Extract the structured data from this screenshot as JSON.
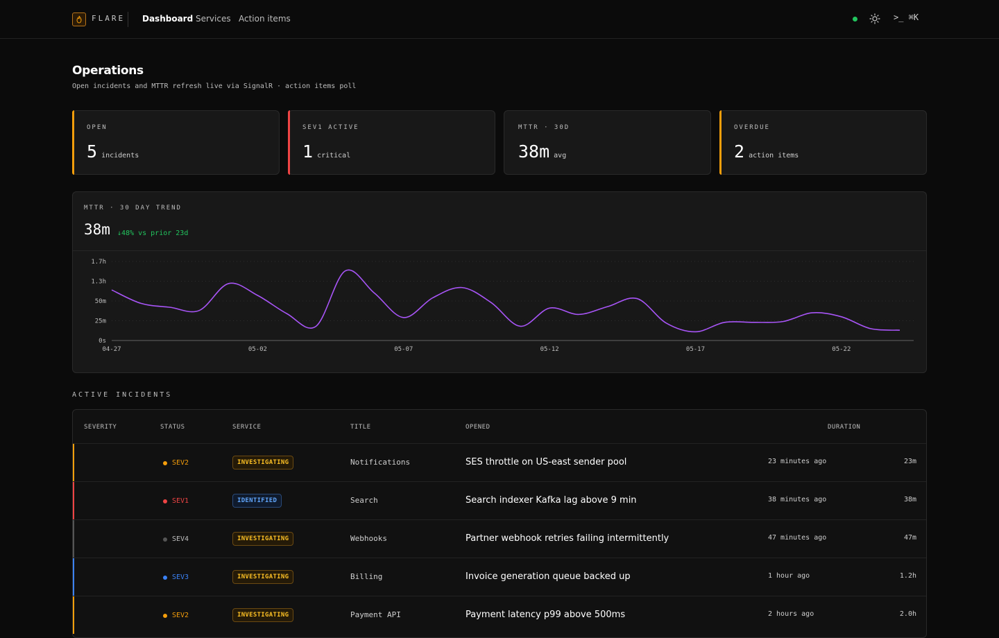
{
  "brand": "FLARE",
  "nav": [
    {
      "label": "Dashboard",
      "active": true
    },
    {
      "label": "Services",
      "active": false
    },
    {
      "label": "Action items",
      "active": false
    }
  ],
  "command_hint": ">_ ⌘K",
  "header": {
    "title": "Operations",
    "subtitle": "Open incidents and MTTR refresh live via SignalR · action items poll"
  },
  "stats": [
    {
      "label": "OPEN",
      "value": "5",
      "unit": "incidents",
      "accent": "#f59e0b"
    },
    {
      "label": "SEV1 ACTIVE",
      "value": "1",
      "unit": "critical",
      "accent": "#ef4444"
    },
    {
      "label": "MTTR · 30D",
      "value": "38m",
      "unit": "avg",
      "accent": ""
    },
    {
      "label": "OVERDUE",
      "value": "2",
      "unit": "action items",
      "accent": "#f59e0b"
    }
  ],
  "trend": {
    "label": "MTTR · 30 DAY TREND",
    "value": "38m",
    "delta": "↓48% vs prior 23d"
  },
  "chart_data": {
    "type": "line",
    "x": [
      "04-27",
      "04-28",
      "04-29",
      "04-30",
      "05-01",
      "05-02",
      "05-03",
      "05-04",
      "05-05",
      "05-06",
      "05-07",
      "05-08",
      "05-09",
      "05-10",
      "05-11",
      "05-12",
      "05-13",
      "05-14",
      "05-15",
      "05-16",
      "05-17",
      "05-18",
      "05-19",
      "05-20",
      "05-21",
      "05-22",
      "05-23",
      "05-24"
    ],
    "x_ticks": [
      "04-27",
      "05-02",
      "05-07",
      "05-12",
      "05-17",
      "05-22"
    ],
    "y_ticks": [
      "0s",
      "25m",
      "50m",
      "1.3h",
      "1.7h"
    ],
    "y_tick_minutes": [
      0,
      25,
      50,
      75,
      100
    ],
    "ylim_minutes": [
      0,
      100
    ],
    "values_minutes": [
      64,
      47,
      42,
      38,
      72,
      57,
      34,
      18,
      88,
      60,
      29,
      54,
      67,
      48,
      18,
      41,
      33,
      43,
      53,
      22,
      11,
      23,
      23,
      24,
      35,
      30,
      15,
      13
    ],
    "line_color": "#a855f7"
  },
  "incidents_label": "ACTIVE INCIDENTS",
  "table": {
    "columns": [
      "SEVERITY",
      "STATUS",
      "SERVICE",
      "TITLE",
      "OPENED",
      "DURATION"
    ],
    "rows": [
      {
        "sev": "SEV2",
        "sev_color": "#f59e0b",
        "status": "INVESTIGATING",
        "service": "Notifications",
        "title": "SES throttle on US-east sender pool",
        "opened": "23 minutes ago",
        "duration": "23m"
      },
      {
        "sev": "SEV1",
        "sev_color": "#ef4444",
        "status": "IDENTIFIED",
        "service": "Search",
        "title": "Search indexer Kafka lag above 9 min",
        "opened": "38 minutes ago",
        "duration": "38m"
      },
      {
        "sev": "SEV4",
        "sev_color": "#555555",
        "status": "INVESTIGATING",
        "service": "Webhooks",
        "title": "Partner webhook retries failing intermittently",
        "opened": "47 minutes ago",
        "duration": "47m"
      },
      {
        "sev": "SEV3",
        "sev_color": "#3b82f6",
        "status": "INVESTIGATING",
        "service": "Billing",
        "title": "Invoice generation queue backed up",
        "opened": "1 hour ago",
        "duration": "1.2h"
      },
      {
        "sev": "SEV2",
        "sev_color": "#f59e0b",
        "status": "INVESTIGATING",
        "service": "Payment API",
        "title": "Payment latency p99 above 500ms",
        "opened": "2 hours ago",
        "duration": "2.0h"
      }
    ]
  }
}
